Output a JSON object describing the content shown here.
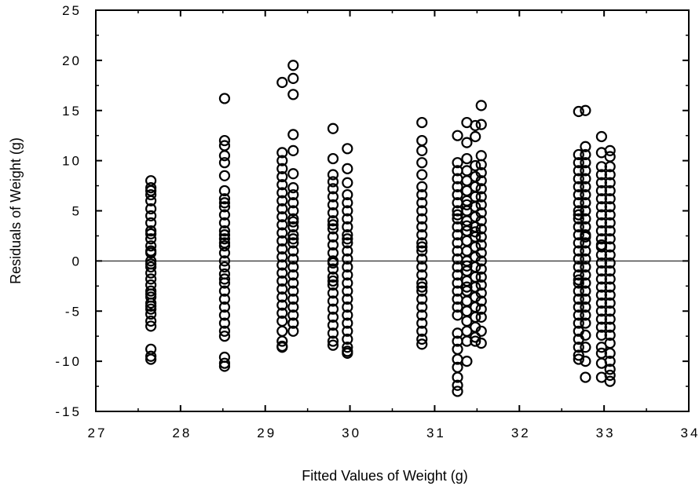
{
  "chart_data": {
    "type": "scatter",
    "title": "",
    "xlabel": "Fitted Values of Weight (g)",
    "ylabel": "Residuals of Weight (g)",
    "xlim": [
      27,
      34
    ],
    "ylim": [
      -15,
      25
    ],
    "xticks": [
      27,
      28,
      29,
      30,
      31,
      32,
      33,
      34
    ],
    "yticks": [
      25,
      20,
      15,
      10,
      5,
      0,
      -5,
      -10,
      -15
    ],
    "xtick_labels": [
      "27",
      "28",
      "29",
      "30",
      "31",
      "32",
      "33",
      "34"
    ],
    "ytick_labels": [
      "25",
      "20",
      "15",
      "10",
      "5",
      "0",
      "-5",
      "-10",
      "-15"
    ],
    "grid": false,
    "reference_line": 0,
    "marker": "open-circle",
    "series": [
      {
        "x": [
          27.65,
          27.65,
          27.65,
          27.65,
          27.65,
          27.65,
          27.65,
          27.65,
          27.65,
          27.65,
          27.65,
          27.65,
          27.65,
          27.65,
          27.65,
          27.65,
          27.65,
          27.65,
          27.65,
          27.65,
          27.65,
          27.65,
          27.65,
          27.65,
          27.65,
          27.65,
          27.65,
          27.65,
          27.65,
          27.65,
          27.65,
          27.65,
          28.52,
          28.52,
          28.52,
          28.52,
          28.52,
          28.52,
          28.52,
          28.52,
          28.52,
          28.52,
          28.52,
          28.52,
          28.52,
          28.52,
          28.52,
          28.52,
          28.52,
          28.52,
          28.52,
          28.52,
          28.52,
          28.52,
          28.52,
          28.52,
          28.52,
          28.52,
          28.52,
          28.52,
          28.52,
          28.52,
          28.52,
          28.52,
          28.52,
          29.2,
          29.2,
          29.2,
          29.2,
          29.2,
          29.2,
          29.2,
          29.2,
          29.2,
          29.2,
          29.2,
          29.2,
          29.2,
          29.2,
          29.2,
          29.2,
          29.2,
          29.2,
          29.2,
          29.2,
          29.2,
          29.2,
          29.2,
          29.2,
          29.2,
          29.2,
          29.2,
          29.33,
          29.33,
          29.33,
          29.33,
          29.33,
          29.33,
          29.33,
          29.33,
          29.33,
          29.33,
          29.33,
          29.33,
          29.33,
          29.33,
          29.33,
          29.33,
          29.33,
          29.33,
          29.33,
          29.33,
          29.33,
          29.33,
          29.33,
          29.33,
          29.33,
          29.33,
          29.33,
          29.33,
          29.8,
          29.8,
          29.8,
          29.8,
          29.8,
          29.8,
          29.8,
          29.8,
          29.8,
          29.8,
          29.8,
          29.8,
          29.8,
          29.8,
          29.8,
          29.8,
          29.8,
          29.8,
          29.8,
          29.8,
          29.8,
          29.8,
          29.8,
          29.8,
          29.8,
          29.8,
          29.8,
          29.8,
          29.97,
          29.97,
          29.97,
          29.97,
          29.97,
          29.97,
          29.97,
          29.97,
          29.97,
          29.97,
          29.97,
          29.97,
          29.97,
          29.97,
          29.97,
          29.97,
          29.97,
          29.97,
          29.97,
          29.97,
          29.97,
          29.97,
          29.97,
          29.97,
          29.97,
          29.97,
          30.85,
          30.85,
          30.85,
          30.85,
          30.85,
          30.85,
          30.85,
          30.85,
          30.85,
          30.85,
          30.85,
          30.85,
          30.85,
          30.85,
          30.85,
          30.85,
          30.85,
          30.85,
          30.85,
          30.85,
          30.85,
          30.85,
          30.85,
          30.85,
          30.85,
          30.85,
          30.85,
          30.85,
          31.27,
          31.27,
          31.27,
          31.27,
          31.27,
          31.27,
          31.27,
          31.27,
          31.27,
          31.27,
          31.27,
          31.27,
          31.27,
          31.27,
          31.27,
          31.27,
          31.27,
          31.27,
          31.27,
          31.27,
          31.27,
          31.27,
          31.27,
          31.27,
          31.27,
          31.27,
          31.27,
          31.27,
          31.27,
          31.27,
          31.38,
          31.38,
          31.38,
          31.38,
          31.38,
          31.38,
          31.38,
          31.38,
          31.38,
          31.38,
          31.38,
          31.38,
          31.38,
          31.38,
          31.38,
          31.38,
          31.38,
          31.38,
          31.38,
          31.38,
          31.38,
          31.38,
          31.38,
          31.38,
          31.38,
          31.38,
          31.48,
          31.48,
          31.48,
          31.48,
          31.48,
          31.48,
          31.48,
          31.48,
          31.48,
          31.48,
          31.48,
          31.48,
          31.48,
          31.48,
          31.48,
          31.48,
          31.48,
          31.48,
          31.48,
          31.48,
          31.48,
          31.48,
          31.55,
          31.55,
          31.55,
          31.55,
          31.55,
          31.55,
          31.55,
          31.55,
          31.55,
          31.55,
          31.55,
          31.55,
          31.55,
          31.55,
          31.55,
          31.55,
          31.55,
          31.55,
          31.55,
          31.55,
          31.55,
          31.55,
          31.55,
          31.55,
          31.55,
          32.7,
          32.7,
          32.7,
          32.7,
          32.7,
          32.7,
          32.7,
          32.7,
          32.7,
          32.7,
          32.7,
          32.7,
          32.7,
          32.7,
          32.7,
          32.7,
          32.7,
          32.7,
          32.7,
          32.7,
          32.7,
          32.7,
          32.7,
          32.7,
          32.7,
          32.7,
          32.7,
          32.7,
          32.7,
          32.7,
          32.78,
          32.78,
          32.78,
          32.78,
          32.78,
          32.78,
          32.78,
          32.78,
          32.78,
          32.78,
          32.78,
          32.78,
          32.78,
          32.78,
          32.78,
          32.78,
          32.78,
          32.78,
          32.78,
          32.78,
          32.78,
          32.78,
          32.78,
          32.78,
          32.78,
          32.78,
          32.78,
          32.78,
          32.78,
          32.97,
          32.97,
          32.97,
          32.97,
          32.97,
          32.97,
          32.97,
          32.97,
          32.97,
          32.97,
          32.97,
          32.97,
          32.97,
          32.97,
          32.97,
          32.97,
          32.97,
          32.97,
          32.97,
          32.97,
          32.97,
          32.97,
          32.97,
          32.97,
          32.97,
          32.97,
          32.97,
          32.97,
          32.97,
          33.07,
          33.07,
          33.07,
          33.07,
          33.07,
          33.07,
          33.07,
          33.07,
          33.07,
          33.07,
          33.07,
          33.07,
          33.07,
          33.07,
          33.07,
          33.07,
          33.07,
          33.07,
          33.07,
          33.07,
          33.07,
          33.07,
          33.07,
          33.07,
          33.07,
          33.07,
          33.07,
          33.07,
          33.07,
          33.07
        ],
        "y": [
          8,
          7.3,
          6.6,
          6,
          5.2,
          4.5,
          3.8,
          3,
          2.2,
          1.5,
          0.8,
          0,
          -0.6,
          -1.2,
          -1.8,
          -2.4,
          -3,
          -3.6,
          -4.2,
          -4.8,
          -5.3,
          -6,
          -6.5,
          -8.8,
          -9.5,
          -9.8,
          2.7,
          1,
          -0.3,
          -3.3,
          -4.5,
          7,
          16.2,
          12,
          11.5,
          10.5,
          9.8,
          8.5,
          7,
          6.2,
          5.4,
          4.6,
          3.8,
          3,
          2.2,
          1.5,
          0.8,
          0,
          -0.6,
          -1.3,
          -2.2,
          -3,
          -3.8,
          -4.6,
          -5.4,
          -6.2,
          -7,
          -7.5,
          -9.6,
          -10.2,
          -10.5,
          5.8,
          2.6,
          1.8,
          -1.8,
          17.8,
          10.8,
          10,
          9.2,
          8.4,
          7.6,
          6.8,
          6,
          5.2,
          4.4,
          3.6,
          2.8,
          2,
          1.2,
          0.4,
          -0.4,
          -1.2,
          -2,
          -2.8,
          -3.6,
          -4.4,
          -5.2,
          -6,
          -7,
          -8,
          -8.5,
          -8.6,
          19.5,
          18.2,
          16.6,
          12.6,
          11,
          8.7,
          7.3,
          6.6,
          5.8,
          5,
          4.2,
          3.4,
          2.6,
          1.8,
          1,
          0.2,
          -0.6,
          -1.4,
          -2.2,
          -3,
          -3.8,
          -4.6,
          -5.4,
          -6.2,
          -7,
          -6.2,
          3.9,
          2.2,
          13.2,
          10.2,
          8.6,
          7.9,
          7.2,
          6.4,
          5.6,
          4.8,
          4,
          3.2,
          2.4,
          1.6,
          0.8,
          0,
          -0.8,
          -1.6,
          -2.4,
          -3.2,
          -4,
          -4.8,
          -5.6,
          -6.4,
          -7.2,
          -8,
          -8.4,
          3.6,
          -2,
          -0.2,
          11.2,
          9.2,
          7.8,
          6.6,
          5.8,
          5,
          4.2,
          3.4,
          2.6,
          1.8,
          1,
          0.2,
          -0.6,
          -1.4,
          -2.2,
          -3,
          -3.8,
          -4.6,
          -5.4,
          -6.2,
          -7,
          -7.8,
          -8.6,
          -9,
          -9.2,
          2.2,
          13.8,
          12,
          11,
          9.8,
          8.6,
          7.4,
          6.6,
          5.8,
          5,
          4.2,
          3.4,
          2.6,
          1.8,
          1,
          0.2,
          -0.6,
          -1.4,
          -2.2,
          -3,
          -3.8,
          -4.6,
          -5.4,
          -6.2,
          -7,
          -7.8,
          -8.3,
          1.4,
          -2.6,
          12.5,
          9.8,
          9,
          8.2,
          7.4,
          6.6,
          5.8,
          5,
          4.2,
          3.4,
          2.6,
          1.8,
          1,
          0.2,
          -0.6,
          -1.4,
          -2.2,
          -3,
          -3.8,
          -4.6,
          -5.4,
          -7.2,
          -8,
          -8.8,
          -9.8,
          -10.6,
          -11.6,
          -12.4,
          -13,
          4.6,
          13.8,
          11.8,
          10.2,
          9,
          8,
          7,
          6,
          5,
          4,
          3,
          2,
          1,
          0,
          -1,
          -2,
          -3,
          -4,
          -5,
          -6,
          -7,
          -8,
          -10,
          -0.5,
          3.5,
          -2.6,
          5.6,
          13.5,
          12.4,
          9.5,
          8.4,
          7.4,
          6.4,
          5.4,
          4.4,
          3.4,
          2.4,
          1.4,
          0.4,
          -0.6,
          -1.6,
          -2.6,
          -3.6,
          -4.6,
          -5.6,
          -6.6,
          -7.6,
          -8,
          2.9,
          15.5,
          13.6,
          10.5,
          9.6,
          8.8,
          8,
          7.2,
          6.4,
          5.6,
          4.8,
          4,
          3.2,
          2.4,
          1.6,
          0.8,
          0,
          -0.8,
          -1.6,
          -2.4,
          -3.2,
          -4,
          -4.8,
          -5.6,
          -7,
          -8.2,
          14.9,
          10.6,
          9.8,
          9,
          8.2,
          7.4,
          6.6,
          5.8,
          5,
          4.2,
          3.4,
          2.6,
          1.8,
          1,
          0.2,
          -0.6,
          -1.4,
          -2.2,
          -3,
          -3.8,
          -4.6,
          -5.4,
          -6.2,
          -7,
          -7.8,
          -8.6,
          -9.4,
          -9.8,
          4.6,
          -1.9,
          15,
          11.4,
          10.6,
          9.8,
          9,
          8.2,
          7.4,
          6.6,
          5.8,
          5,
          4.2,
          3.4,
          2.6,
          1.8,
          1,
          0.2,
          -0.6,
          -1.4,
          -2.2,
          -3,
          -3.8,
          -4.6,
          -5.4,
          -6.2,
          -7.4,
          -8.6,
          -10,
          -11.6,
          2.4,
          12.4,
          10.8,
          9.4,
          8.6,
          7.8,
          7,
          6.2,
          5.4,
          4.6,
          3.8,
          3,
          2.2,
          1.4,
          0.6,
          -0.2,
          -1,
          -1.8,
          -2.6,
          -3.4,
          -4.2,
          -5,
          -5.8,
          -6.6,
          -7.4,
          -8.6,
          -9.2,
          -10.2,
          -11.6,
          1.6,
          11,
          10.4,
          9.4,
          8.6,
          7.8,
          7,
          6.2,
          5.4,
          4.6,
          3.8,
          3,
          2.2,
          1.4,
          0.6,
          -0.2,
          -1,
          -1.8,
          -2.6,
          -3.4,
          -4.2,
          -5,
          -5.8,
          -6.6,
          -7.4,
          -8.2,
          -9.2,
          -10,
          -10.8,
          -11.4,
          -12
        ]
      }
    ]
  }
}
